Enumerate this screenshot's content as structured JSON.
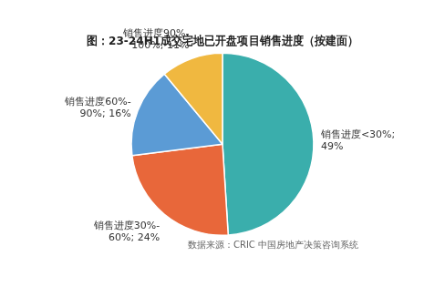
{
  "chart_data": {
    "type": "pie",
    "title": "图：23-24H1成交宅地已开盘项目销售进度（按建面）",
    "values": [
      49,
      24,
      16,
      11
    ],
    "colors": [
      "#3aaeac",
      "#e8673a",
      "#5b9bd5",
      "#f0b840"
    ],
    "annotations": [
      "销售进度<30%;\n49%",
      "销售进度30%-\n60%; 24%",
      "销售进度60%-\n90%; 16%",
      "销售进度90%-\n100%; 11%"
    ],
    "source": "数据来源：CRIC 中国房地产决策咨询系统",
    "legend": false
  }
}
